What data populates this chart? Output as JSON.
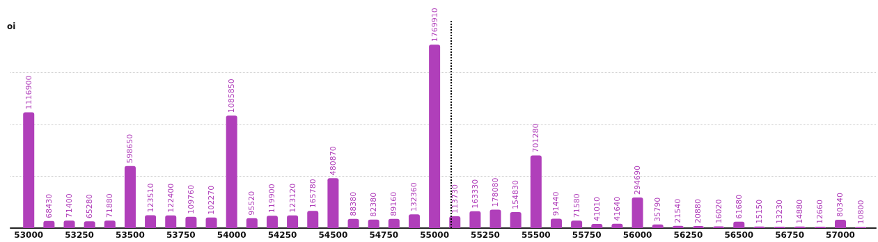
{
  "chart_data": {
    "type": "bar",
    "ylabel": "oi",
    "x": [
      53000,
      53100,
      53200,
      53300,
      53400,
      53500,
      53600,
      53700,
      53800,
      53900,
      54000,
      54100,
      54200,
      54300,
      54400,
      54500,
      54600,
      54700,
      54800,
      54900,
      55000,
      55100,
      55200,
      55300,
      55400,
      55500,
      55600,
      55700,
      55800,
      55900,
      56000,
      56100,
      56200,
      56300,
      56400,
      56500,
      56600,
      56700,
      56800,
      56900,
      57000,
      57100
    ],
    "values": [
      1116900,
      68430,
      71400,
      65280,
      71880,
      598650,
      123510,
      122400,
      109760,
      102270,
      1085850,
      95520,
      119900,
      123120,
      165780,
      480870,
      88380,
      82380,
      89160,
      132360,
      1769910,
      113730,
      163330,
      178080,
      154830,
      701280,
      91440,
      71580,
      41010,
      41640,
      294690,
      35790,
      21540,
      20880,
      16020,
      61680,
      15150,
      13230,
      14880,
      12660,
      80340,
      10800
    ],
    "color": "#b03fba",
    "data_labels": true,
    "xlim": [
      52910,
      57175
    ],
    "xticks": [
      53000,
      53250,
      53500,
      53750,
      54000,
      54250,
      54500,
      54750,
      55000,
      55250,
      55500,
      55750,
      56000,
      56250,
      56500,
      56750,
      57000
    ],
    "ylim": [
      0,
      2000000
    ],
    "yticks": [
      {
        "value": 0,
        "label": null
      },
      {
        "value": 500000,
        "label": null
      },
      {
        "value": 1000000,
        "label": null
      },
      {
        "value": 1500000,
        "label": null
      }
    ],
    "tick_labels": "x",
    "grid": "y",
    "ref_lines": [
      {
        "axis": "x",
        "value": 55080,
        "color": "#000000",
        "line_style": "dotted"
      }
    ]
  }
}
